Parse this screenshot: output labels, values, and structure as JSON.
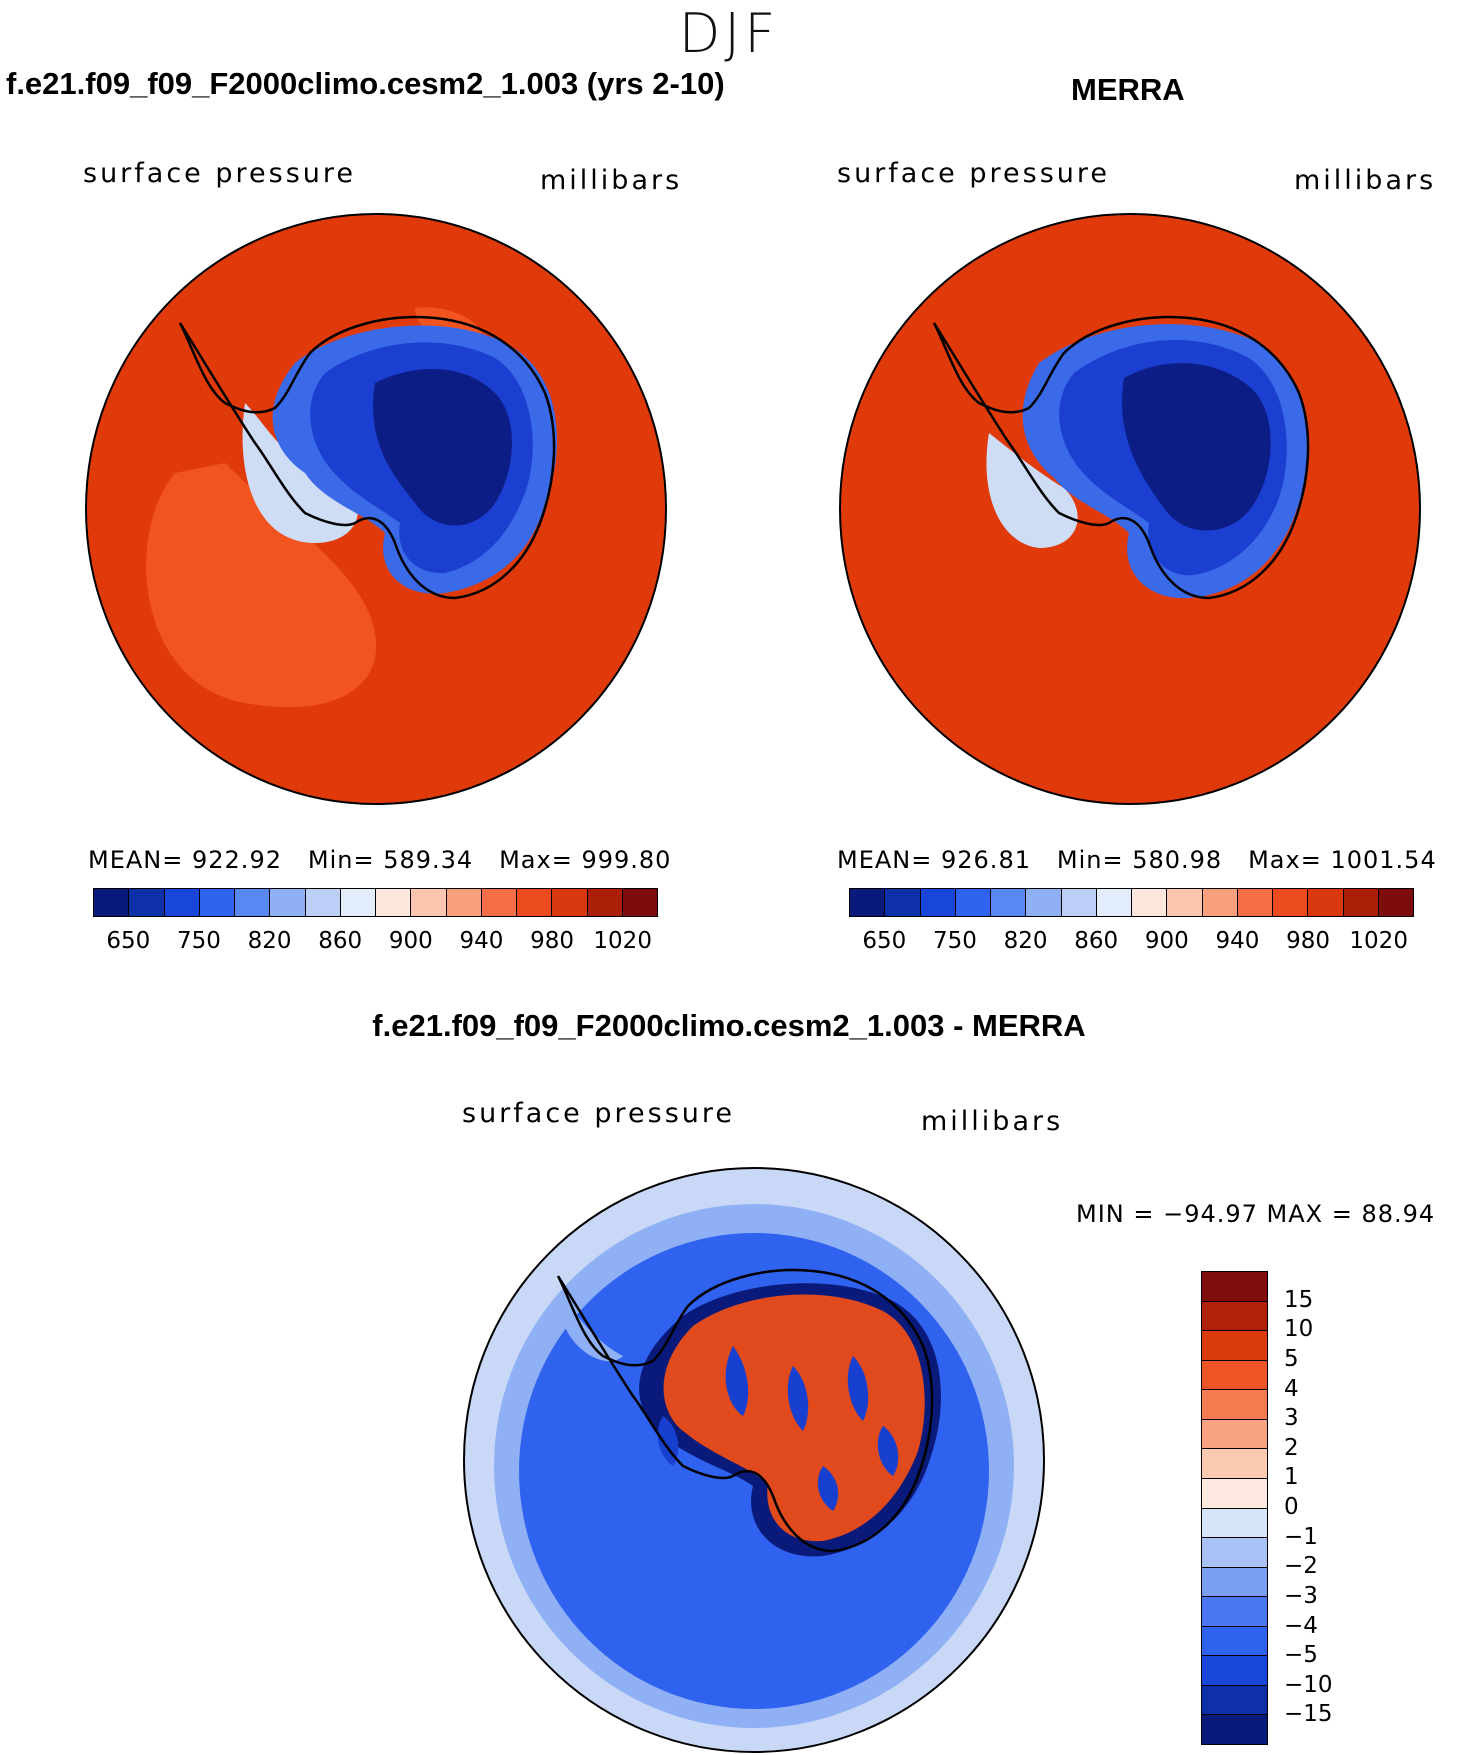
{
  "season": "DJF",
  "panels": [
    {
      "title": "f.e21.f09_f09_F2000climo.cesm2_1.003 (yrs 2-10)",
      "variable": "surface pressure",
      "units": "millibars",
      "mean_label": "MEAN=",
      "mean": "922.92",
      "min_label": "Min=",
      "min": "589.34",
      "max_label": "Max=",
      "max": "999.80"
    },
    {
      "title": "MERRA",
      "variable": "surface pressure",
      "units": "millibars",
      "mean_label": "MEAN=",
      "mean": "926.81",
      "min_label": "Min=",
      "min": "580.98",
      "max_label": "Max=",
      "max": "1001.54"
    }
  ],
  "abs_colorbar": {
    "colors": [
      "#0a1a7a",
      "#0d2fa8",
      "#1746d8",
      "#2f62ee",
      "#5a88f2",
      "#8fb0f4",
      "#bcd0f7",
      "#e2ecfb",
      "#fde7dc",
      "#fcc6ae",
      "#f9a07e",
      "#f46f47",
      "#ec4a1f",
      "#d9370d",
      "#ab1f08",
      "#7d0d0d"
    ],
    "tick_labels": [
      "650",
      "750",
      "820",
      "860",
      "900",
      "940",
      "980",
      "1020"
    ]
  },
  "diff_panel": {
    "title": "f.e21.f09_f09_F2000climo.cesm2_1.003 - MERRA",
    "variable": "surface pressure",
    "units": "millibars",
    "minmax_text": "MIN = −94.97 MAX =   88.94",
    "colorbar": {
      "colors": [
        "#0a1a7a",
        "#0d2fa8",
        "#1746d8",
        "#2f62ee",
        "#4a78f0",
        "#7a9ff2",
        "#a8c2f5",
        "#d6e4fa",
        "#fde9df",
        "#fcc9b1",
        "#f9a282",
        "#f47a50",
        "#ee5526",
        "#d93a0e",
        "#b0210a",
        "#820d0d"
      ],
      "tick_labels": [
        "−15",
        "−10",
        "−5",
        "−4",
        "−3",
        "−2",
        "−1",
        "0",
        "1",
        "2",
        "3",
        "4",
        "5",
        "10",
        "15"
      ]
    }
  },
  "map_colors": {
    "ocean_abs": "#e03a0b",
    "ocean_abs_alt": "#f2541f",
    "ice_low": "#0d1d86",
    "ice_mid": "#1b3fd0",
    "ice_high": "#3a6ae8",
    "coast_light": "#cfdcf6",
    "diff_ocean": "#2f62ee",
    "diff_ocean_light": "#8fb0f4",
    "diff_ocean_faint": "#c8d8f6",
    "diff_pos": "#e04a1c",
    "diff_neg": "#1740d0",
    "diff_dark": "#0a1a7a"
  }
}
